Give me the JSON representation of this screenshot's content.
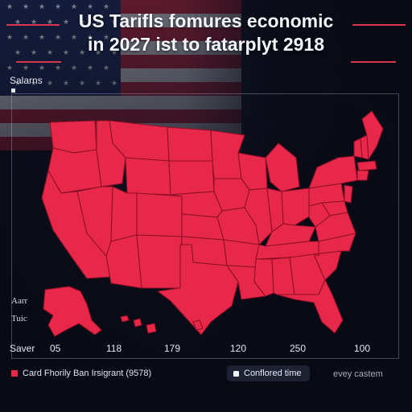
{
  "title": {
    "line1": "US Tarifls fomures economic",
    "line2": "in 2027 ist to fatarplyt 2918"
  },
  "legend": {
    "title": "Salarns",
    "bottom_label": "Card Fhorily Ban Irsigrant (9578)",
    "pill_label": "Conflored time",
    "fill_color": "#e8284a"
  },
  "insets": {
    "alaska": "Aarr",
    "hawaii": "Tuic"
  },
  "axis": {
    "label": "Saver",
    "ticks": [
      "05",
      "118",
      "179",
      "120",
      "250",
      "100"
    ]
  },
  "credit": "evey castem",
  "colors": {
    "state_fill": "#e8284a",
    "state_border": "#8e1026",
    "background": "#0c0f1e",
    "accent_rule": "#d8354f"
  }
}
